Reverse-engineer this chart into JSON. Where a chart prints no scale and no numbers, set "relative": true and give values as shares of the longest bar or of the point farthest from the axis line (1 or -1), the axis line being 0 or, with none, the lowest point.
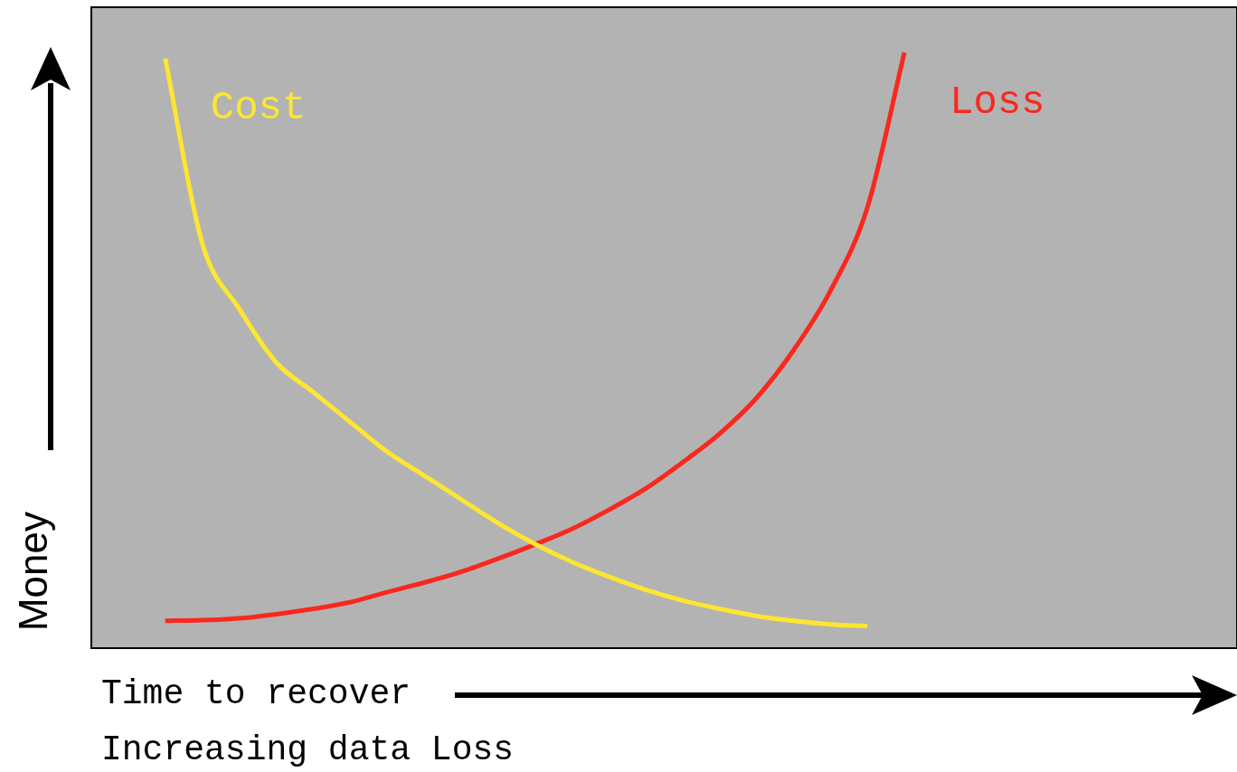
{
  "chart_data": {
    "type": "line",
    "relative": true,
    "legend": false,
    "tick_labels": false,
    "marker": "none",
    "line_style": "solid",
    "xlabel": "Time to recover",
    "ylabel": "Money",
    "annotations": [
      "Increasing data Loss"
    ],
    "categories": [
      null,
      null,
      null,
      null,
      null,
      null,
      null,
      null,
      null,
      null,
      null,
      null,
      null,
      null,
      null,
      null,
      null,
      null,
      null,
      null,
      null,
      null,
      null,
      null,
      null,
      null,
      null,
      null,
      null,
      null,
      null,
      null
    ],
    "series": [
      {
        "name": "Cost",
        "color": "#fce632",
        "values": [
          null,
          null,
          0.99,
          0.68,
          0.57,
          0.48,
          0.43,
          0.38,
          0.33,
          0.29,
          0.25,
          0.21,
          0.175,
          0.145,
          0.12,
          0.098,
          0.08,
          0.066,
          0.054,
          0.046,
          0.04,
          0.037,
          null,
          null,
          null,
          null,
          null,
          null,
          null,
          null,
          null,
          null
        ]
      },
      {
        "name": "Loss",
        "color": "#f9281e",
        "values": [
          null,
          null,
          0.046,
          0.047,
          0.05,
          0.057,
          0.066,
          0.077,
          0.094,
          0.11,
          0.128,
          0.15,
          0.174,
          0.2,
          0.232,
          0.268,
          0.312,
          0.36,
          0.42,
          0.5,
          0.6,
          0.74,
          1.0,
          null,
          null,
          null,
          null,
          null,
          null,
          null,
          null,
          null
        ]
      }
    ]
  }
}
